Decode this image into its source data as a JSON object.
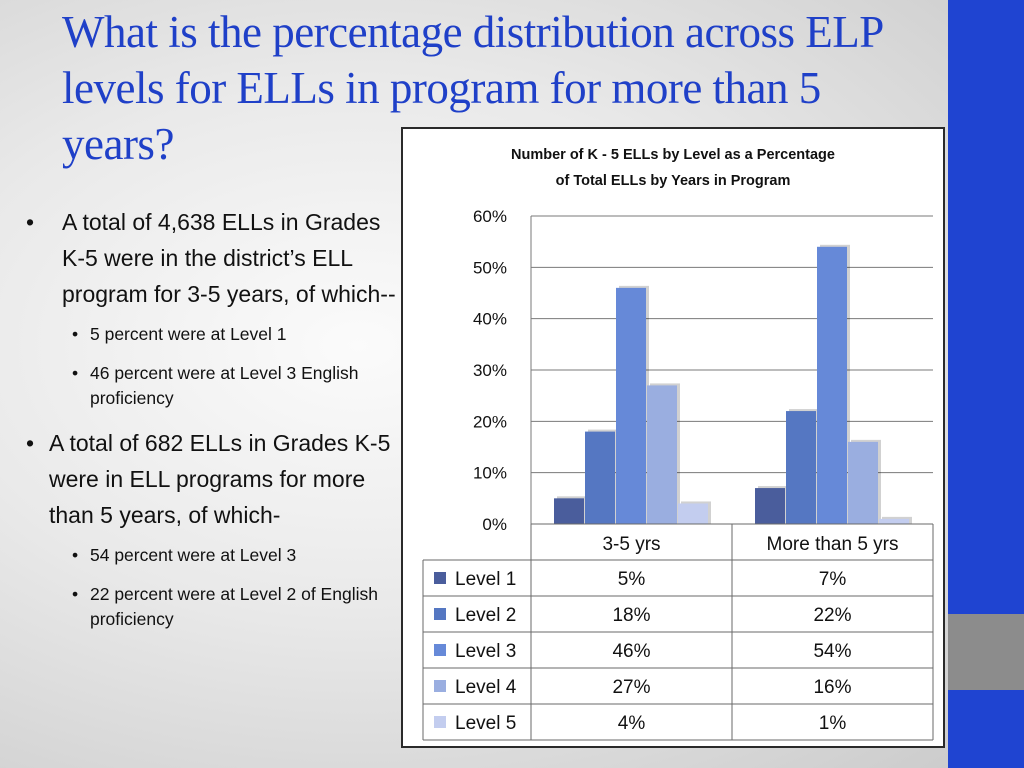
{
  "slide": {
    "title": "What is the percentage distribution across ELP levels for ELLs in program for more than 5 years?",
    "bullets": [
      {
        "text": "A total of 4,638 ELLs in Grades K-5 were in the district’s ELL program for 3-5 years, of which--",
        "sub": [
          "5 percent were at Level 1",
          "46 percent were at Level 3 English proficiency"
        ]
      },
      {
        "text": "A total of 682 ELLs in Grades K-5 were in ELL programs for more than 5 years, of which-",
        "sub": [
          "54 percent were at Level 3",
          "22 percent were at Level 2 of English proficiency"
        ]
      }
    ],
    "bullet_glyph": "•"
  },
  "colors": {
    "title": "#1f40c8",
    "side_bar": "#1f44d1",
    "side_bar_accent": "#8c8c8c"
  },
  "chart_data": {
    "type": "bar",
    "title_lines": [
      "Number of K - 5 ELLs by Level  as a  Percentage",
      "of Total ELLs by Years in Program"
    ],
    "categories": [
      "3-5 yrs",
      "More than 5 yrs"
    ],
    "series": [
      {
        "name": "Level 1",
        "values": [
          5,
          7
        ],
        "labels": [
          "5%",
          "7%"
        ],
        "color": "#4a5d9c"
      },
      {
        "name": "Level 2",
        "values": [
          18,
          22
        ],
        "labels": [
          "18%",
          "22%"
        ],
        "color": "#5577c2"
      },
      {
        "name": "Level 3",
        "values": [
          46,
          54
        ],
        "labels": [
          "46%",
          "54%"
        ],
        "color": "#6689d8"
      },
      {
        "name": "Level 4",
        "values": [
          27,
          16
        ],
        "labels": [
          "27%",
          "16%"
        ],
        "color": "#9aaee0"
      },
      {
        "name": "Level 5",
        "values": [
          4,
          1
        ],
        "labels": [
          "4%",
          "1%"
        ],
        "color": "#c3cdef"
      }
    ],
    "ylim": [
      0,
      60
    ],
    "yticks": [
      0,
      10,
      20,
      30,
      40,
      50,
      60
    ],
    "ytick_labels": [
      "0%",
      "10%",
      "20%",
      "30%",
      "40%",
      "50%",
      "60%"
    ],
    "grid": true,
    "legend": "data-table-below"
  }
}
